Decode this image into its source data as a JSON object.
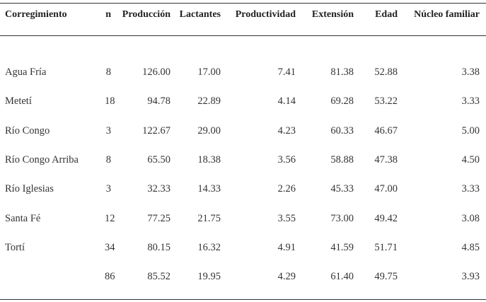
{
  "table": {
    "headers": [
      "Corregimiento",
      "n",
      "Producción",
      "Lactantes",
      "Productividad",
      "Extensión",
      "Edad",
      "Núcleo familiar"
    ],
    "rows": [
      {
        "corregimiento": "Agua Fría",
        "n": "8",
        "produccion": "126.00",
        "lactantes": "17.00",
        "productividad": "7.41",
        "extension": "81.38",
        "edad": "52.88",
        "nucleo": "3.38"
      },
      {
        "corregimiento": "Metetí",
        "n": "18",
        "produccion": "94.78",
        "lactantes": "22.89",
        "productividad": "4.14",
        "extension": "69.28",
        "edad": "53.22",
        "nucleo": "3.33"
      },
      {
        "corregimiento": "Río Congo",
        "n": "3",
        "produccion": "122.67",
        "lactantes": "29.00",
        "productividad": "4.23",
        "extension": "60.33",
        "edad": "46.67",
        "nucleo": "5.00"
      },
      {
        "corregimiento": "Río Congo Arriba",
        "n": "8",
        "produccion": "65.50",
        "lactantes": "18.38",
        "productividad": "3.56",
        "extension": "58.88",
        "edad": "47.38",
        "nucleo": "4.50"
      },
      {
        "corregimiento": "Río Iglesias",
        "n": "3",
        "produccion": "32.33",
        "lactantes": "14.33",
        "productividad": "2.26",
        "extension": "45.33",
        "edad": "47.00",
        "nucleo": "3.33"
      },
      {
        "corregimiento": "Santa Fé",
        "n": "12",
        "produccion": "77.25",
        "lactantes": "21.75",
        "productividad": "3.55",
        "extension": "73.00",
        "edad": "49.42",
        "nucleo": "3.08"
      },
      {
        "corregimiento": "Tortí",
        "n": "34",
        "produccion": "80.15",
        "lactantes": "16.32",
        "productividad": "4.91",
        "extension": "41.59",
        "edad": "51.71",
        "nucleo": "4.85"
      },
      {
        "corregimiento": "",
        "n": "86",
        "produccion": "85.52",
        "lactantes": "19.95",
        "productividad": "4.29",
        "extension": "61.40",
        "edad": "49.75",
        "nucleo": "3.93"
      }
    ]
  }
}
